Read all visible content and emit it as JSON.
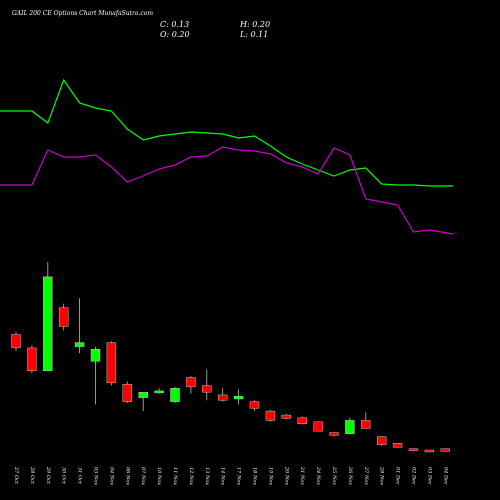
{
  "header": {
    "title": "GAIL 200 CE Options Chart MunafaSutra.com",
    "close": "C: 0.13",
    "open": "O: 0.20",
    "high": "H: 0.20",
    "low": "L: 0.11"
  },
  "colors": {
    "background": "#000000",
    "up": "#00ff00",
    "down": "#ff0000",
    "line_green": "#00ff00",
    "line_magenta": "#cc00cc"
  },
  "chart_data": {
    "type": "candlestick",
    "title": "",
    "categories": [
      "27 Oct",
      "28 Oct",
      "29 Oct",
      "30 Oct",
      "31 Oct",
      "03 Nov",
      "04 Nov",
      "06 Nov",
      "07 Nov",
      "10 Nov",
      "11 Nov",
      "12 Nov",
      "13 Nov",
      "14 Nov",
      "17 Nov",
      "18 Nov",
      "19 Nov",
      "20 Nov",
      "21 Nov",
      "24 Nov",
      "25 Nov",
      "26 Nov",
      "27 Nov",
      "28 Nov",
      "01 Dec",
      "02 Dec",
      "03 Dec",
      "04 Dec"
    ],
    "candles": [
      {
        "open": 6.9,
        "high": 7.1,
        "low": 5.7,
        "close": 5.9
      },
      {
        "open": 5.9,
        "high": 6.1,
        "low": 4.0,
        "close": 4.2
      },
      {
        "open": 4.2,
        "high": 12.3,
        "low": 4.2,
        "close": 11.2
      },
      {
        "open": 8.9,
        "high": 9.2,
        "low": 7.2,
        "close": 7.5
      },
      {
        "open": 6.0,
        "high": 9.6,
        "low": 5.5,
        "close": 6.3
      },
      {
        "open": 4.9,
        "high": 6.0,
        "low": 1.7,
        "close": 5.8
      },
      {
        "open": 6.3,
        "high": 6.4,
        "low": 3.1,
        "close": 3.3
      },
      {
        "open": 3.2,
        "high": 3.4,
        "low": 1.8,
        "close": 1.9
      },
      {
        "open": 2.2,
        "high": 2.6,
        "low": 1.2,
        "close": 2.6
      },
      {
        "open": 2.7,
        "high": 2.9,
        "low": 2.5,
        "close": 2.7
      },
      {
        "open": 1.9,
        "high": 3.0,
        "low": 1.8,
        "close": 2.9
      },
      {
        "open": 3.7,
        "high": 3.8,
        "low": 2.5,
        "close": 3.0
      },
      {
        "open": 3.1,
        "high": 4.3,
        "low": 2.0,
        "close": 2.6
      },
      {
        "open": 2.4,
        "high": 2.9,
        "low": 1.9,
        "close": 2.0
      },
      {
        "open": 2.1,
        "high": 2.8,
        "low": 1.7,
        "close": 2.3
      },
      {
        "open": 1.9,
        "high": 2.0,
        "low": 1.2,
        "close": 1.4
      },
      {
        "open": 1.2,
        "high": 1.3,
        "low": 0.4,
        "close": 0.5
      },
      {
        "open": 0.9,
        "high": 1.0,
        "low": 0.6,
        "close": 0.65
      },
      {
        "open": 0.7,
        "high": 0.8,
        "low": 0.2,
        "close": 0.25
      },
      {
        "open": 0.4,
        "high": 0.4,
        "low": -0.3,
        "close": -0.3
      },
      {
        "open": -0.4,
        "high": -0.4,
        "low": -0.7,
        "close": -0.6
      },
      {
        "open": -0.5,
        "high": 0.7,
        "low": -0.5,
        "close": 0.5
      },
      {
        "open": 0.5,
        "high": 1.1,
        "low": -0.1,
        "close": -0.1
      },
      {
        "open": -0.7,
        "high": -0.7,
        "low": -1.4,
        "close": -1.3
      },
      {
        "open": -1.2,
        "high": -1.2,
        "low": -1.5,
        "close": -1.5
      },
      {
        "open": -1.6,
        "high": -1.6,
        "low": -1.8,
        "close": -1.75
      },
      {
        "open": -1.7,
        "high": -1.7,
        "low": -1.85,
        "close": -1.8
      },
      {
        "open": -1.6,
        "high": -1.6,
        "low": -1.8,
        "close": -1.8
      }
    ],
    "series": [
      {
        "values": [
          111,
          111,
          123,
          80,
          103,
          108,
          111,
          129,
          140,
          136,
          134,
          132,
          133,
          134,
          138,
          136,
          146,
          157,
          164,
          170,
          176,
          170,
          168,
          184,
          185,
          185,
          186,
          186
        ]
      },
      {
        "values": [
          185,
          185,
          150,
          157,
          157,
          155,
          167,
          182,
          176,
          169,
          165,
          157,
          156,
          147,
          150,
          151,
          154,
          163,
          167,
          174,
          148,
          155,
          199,
          202,
          205,
          232,
          230,
          234
        ]
      }
    ],
    "xlabel": "",
    "ylabel": ""
  }
}
